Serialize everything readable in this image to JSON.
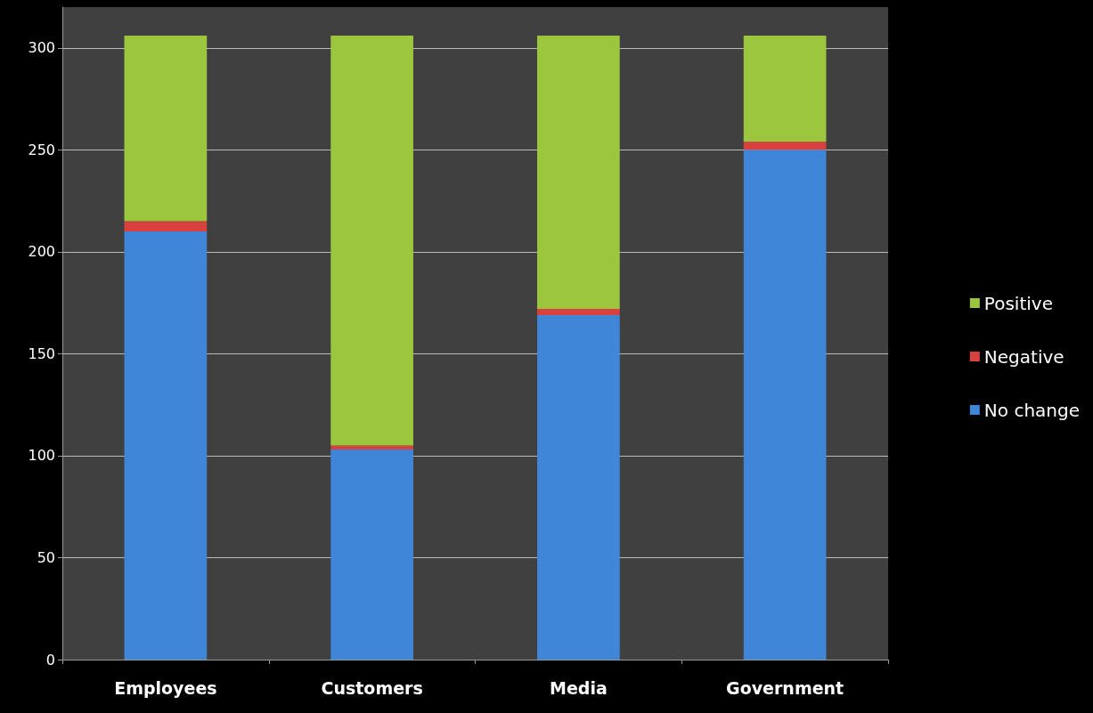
{
  "chart_data": {
    "type": "bar",
    "stacked": true,
    "categories": [
      "Employees",
      "Customers",
      "Media",
      "Government"
    ],
    "series": [
      {
        "name": "No change",
        "color": "#3f86d8",
        "values": [
          210,
          103,
          169,
          250
        ]
      },
      {
        "name": "Negative",
        "color": "#d9413f",
        "values": [
          5,
          2,
          3,
          4
        ]
      },
      {
        "name": "Positive",
        "color": "#9cc63e",
        "values": [
          91,
          201,
          134,
          52
        ]
      }
    ],
    "ylim": [
      0,
      320
    ],
    "yticks": [
      0,
      50,
      100,
      150,
      200,
      250,
      300
    ],
    "grid": "y",
    "legend": "right"
  }
}
